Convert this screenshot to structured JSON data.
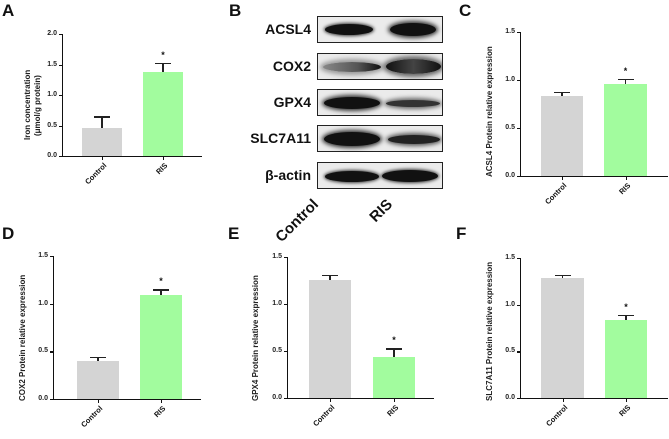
{
  "panels": {
    "A": {
      "letter": "A"
    },
    "B": {
      "letter": "B"
    },
    "C": {
      "letter": "C"
    },
    "D": {
      "letter": "D"
    },
    "E": {
      "letter": "E"
    },
    "F": {
      "letter": "F"
    }
  },
  "colors": {
    "control": "#d4d4d4",
    "ris": "#a2fc9e"
  },
  "western_blot": {
    "proteins": [
      "ACSL4",
      "COX2",
      "GPX4",
      "SLC7A11",
      "β-actin"
    ],
    "lanes": [
      "Control",
      "RIS"
    ]
  },
  "chart_data": [
    {
      "panel": "A",
      "type": "bar",
      "title": "",
      "xlabel": "",
      "ylabel": "Iron concentration (μmol/g protein)",
      "ylabel_line1": "Iron concentration",
      "ylabel_line2": "(μmol/g protein)",
      "categories": [
        "Control",
        "RIS"
      ],
      "values": [
        0.46,
        1.37
      ],
      "errors": [
        0.19,
        0.16
      ],
      "significance": [
        "",
        "*"
      ],
      "ylim": [
        0,
        2.0
      ],
      "yticks": [
        "0.0",
        "0.5",
        "1.0",
        "1.5",
        "2.0"
      ],
      "grid": false,
      "legend": null
    },
    {
      "panel": "C",
      "type": "bar",
      "title": "",
      "xlabel": "",
      "ylabel": "ACSL4 Protein relative expression",
      "categories": [
        "Control",
        "RIS"
      ],
      "values": [
        0.83,
        0.96
      ],
      "errors": [
        0.05,
        0.05
      ],
      "significance": [
        "",
        "*"
      ],
      "ylim": [
        0,
        1.5
      ],
      "yticks": [
        "0.0",
        "0.5",
        "1.0",
        "1.5"
      ],
      "grid": false,
      "legend": null
    },
    {
      "panel": "D",
      "type": "bar",
      "title": "",
      "xlabel": "",
      "ylabel": "COX2 Protein relative expression",
      "categories": [
        "Control",
        "RIS"
      ],
      "values": [
        0.4,
        1.09
      ],
      "errors": [
        0.04,
        0.06
      ],
      "significance": [
        "",
        "*"
      ],
      "ylim": [
        0,
        1.5
      ],
      "yticks": [
        "0.0",
        "0.5",
        "1.0",
        "1.5"
      ],
      "grid": false,
      "legend": null
    },
    {
      "panel": "E",
      "type": "bar",
      "title": "",
      "xlabel": "",
      "ylabel": "GPX4 Protein relative expression",
      "categories": [
        "Control",
        "RIS"
      ],
      "values": [
        1.26,
        0.44
      ],
      "errors": [
        0.05,
        0.09
      ],
      "significance": [
        "",
        "*"
      ],
      "ylim": [
        0,
        1.5
      ],
      "yticks": [
        "0.0",
        "0.5",
        "1.0",
        "1.5"
      ],
      "grid": false,
      "legend": null
    },
    {
      "panel": "F",
      "type": "bar",
      "title": "",
      "xlabel": "",
      "ylabel": "SLC7A11 Protein relative expression",
      "categories": [
        "Control",
        "RIS"
      ],
      "values": [
        1.29,
        0.84
      ],
      "errors": [
        0.03,
        0.05
      ],
      "significance": [
        "",
        "*"
      ],
      "ylim": [
        0,
        1.5
      ],
      "yticks": [
        "0.0",
        "0.5",
        "1.0",
        "1.5"
      ],
      "grid": false,
      "legend": null
    }
  ]
}
